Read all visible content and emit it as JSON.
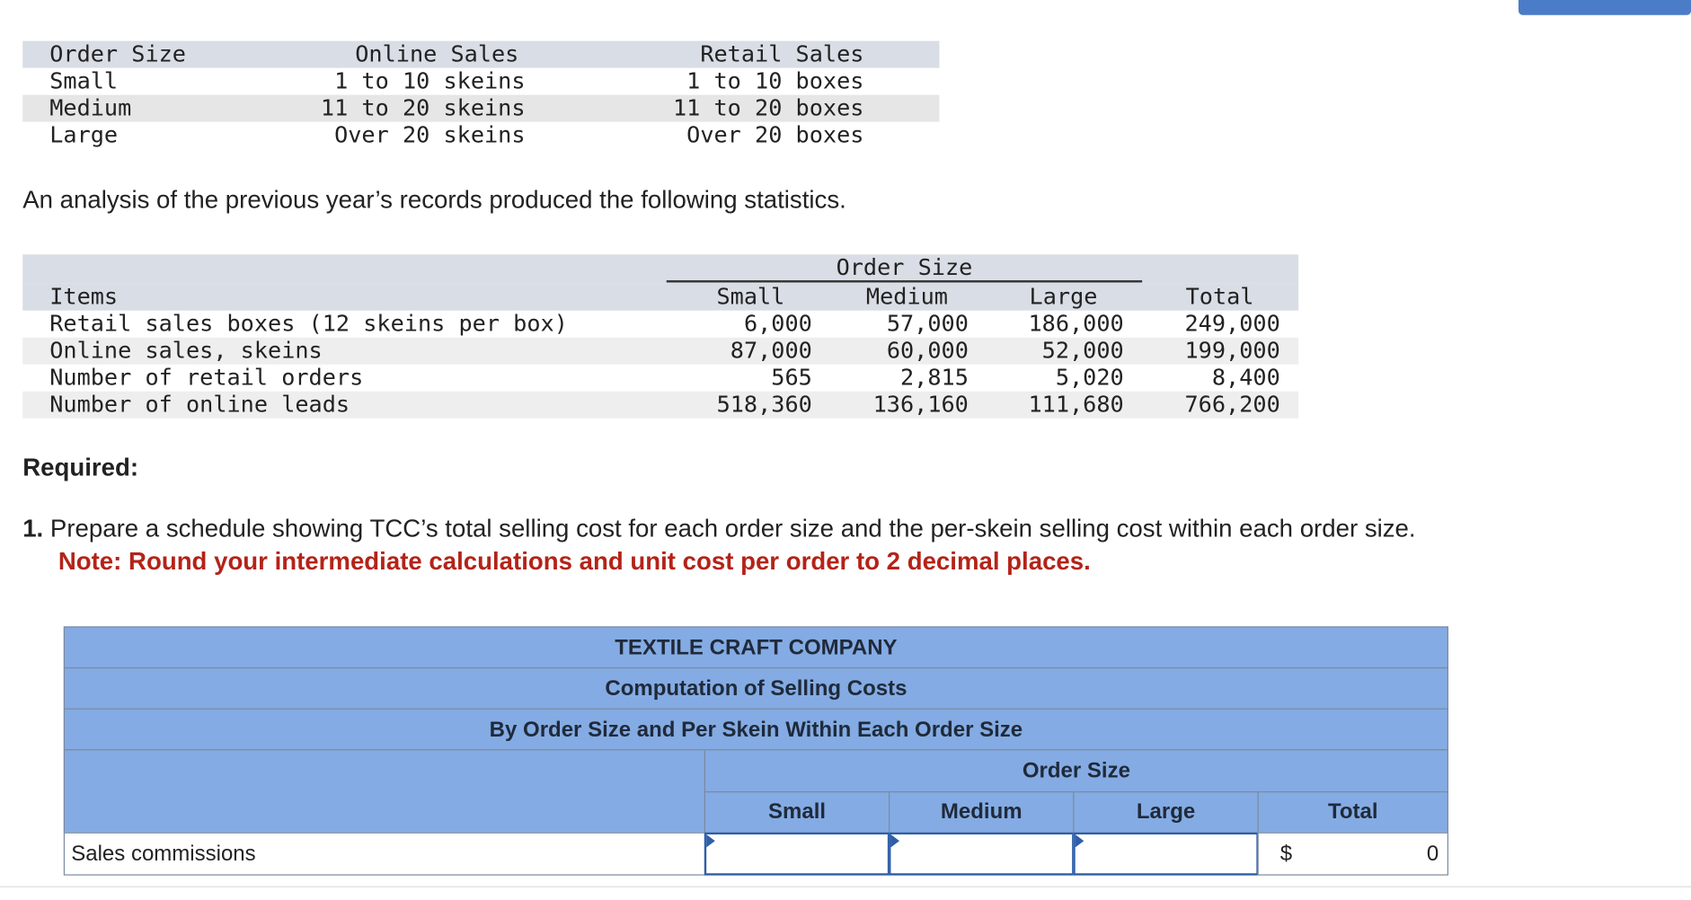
{
  "order_table": {
    "headers": [
      "Order Size",
      "Online Sales",
      "Retail Sales"
    ],
    "rows": [
      [
        "Small",
        "1 to 10 skeins",
        "1 to 10 boxes"
      ],
      [
        "Medium",
        "11 to 20 skeins",
        "11 to 20 boxes"
      ],
      [
        "Large",
        "Over 20 skeins",
        "Over 20 boxes"
      ]
    ]
  },
  "analysis_text": "An analysis of the previous year’s records produced the following statistics.",
  "stats_table": {
    "group_header": "Order Size",
    "headers": [
      "Items",
      "Small",
      "Medium",
      "Large",
      "Total"
    ],
    "rows": [
      [
        "Retail sales boxes (12 skeins per box)",
        "6,000",
        "57,000",
        "186,000",
        "249,000"
      ],
      [
        "Online sales, skeins",
        "87,000",
        "60,000",
        "52,000",
        "199,000"
      ],
      [
        "Number of retail orders",
        "565",
        "2,815",
        "5,020",
        "8,400"
      ],
      [
        "Number of online leads",
        "518,360",
        "136,160",
        "111,680",
        "766,200"
      ]
    ]
  },
  "required_label": "Required:",
  "question": {
    "number": "1.",
    "text": "Prepare a schedule showing TCC’s total selling cost for each order size and the per-skein selling cost within each order size.",
    "note": "Note: Round your intermediate calculations and unit cost per order to 2 decimal places."
  },
  "schedule": {
    "company": "TEXTILE CRAFT COMPANY",
    "title": "Computation of Selling Costs",
    "subtitle": "By Order Size and Per Skein Within Each Order Size",
    "group_header": "Order Size",
    "columns": [
      "Small",
      "Medium",
      "Large",
      "Total"
    ],
    "rows": [
      {
        "label": "Sales commissions",
        "small": "",
        "medium": "",
        "large": "",
        "currency": "$",
        "total": "0"
      }
    ]
  },
  "colors": {
    "header_blue": "#84abe3",
    "note_red": "#b42318",
    "input_border": "#2f5fa8"
  }
}
